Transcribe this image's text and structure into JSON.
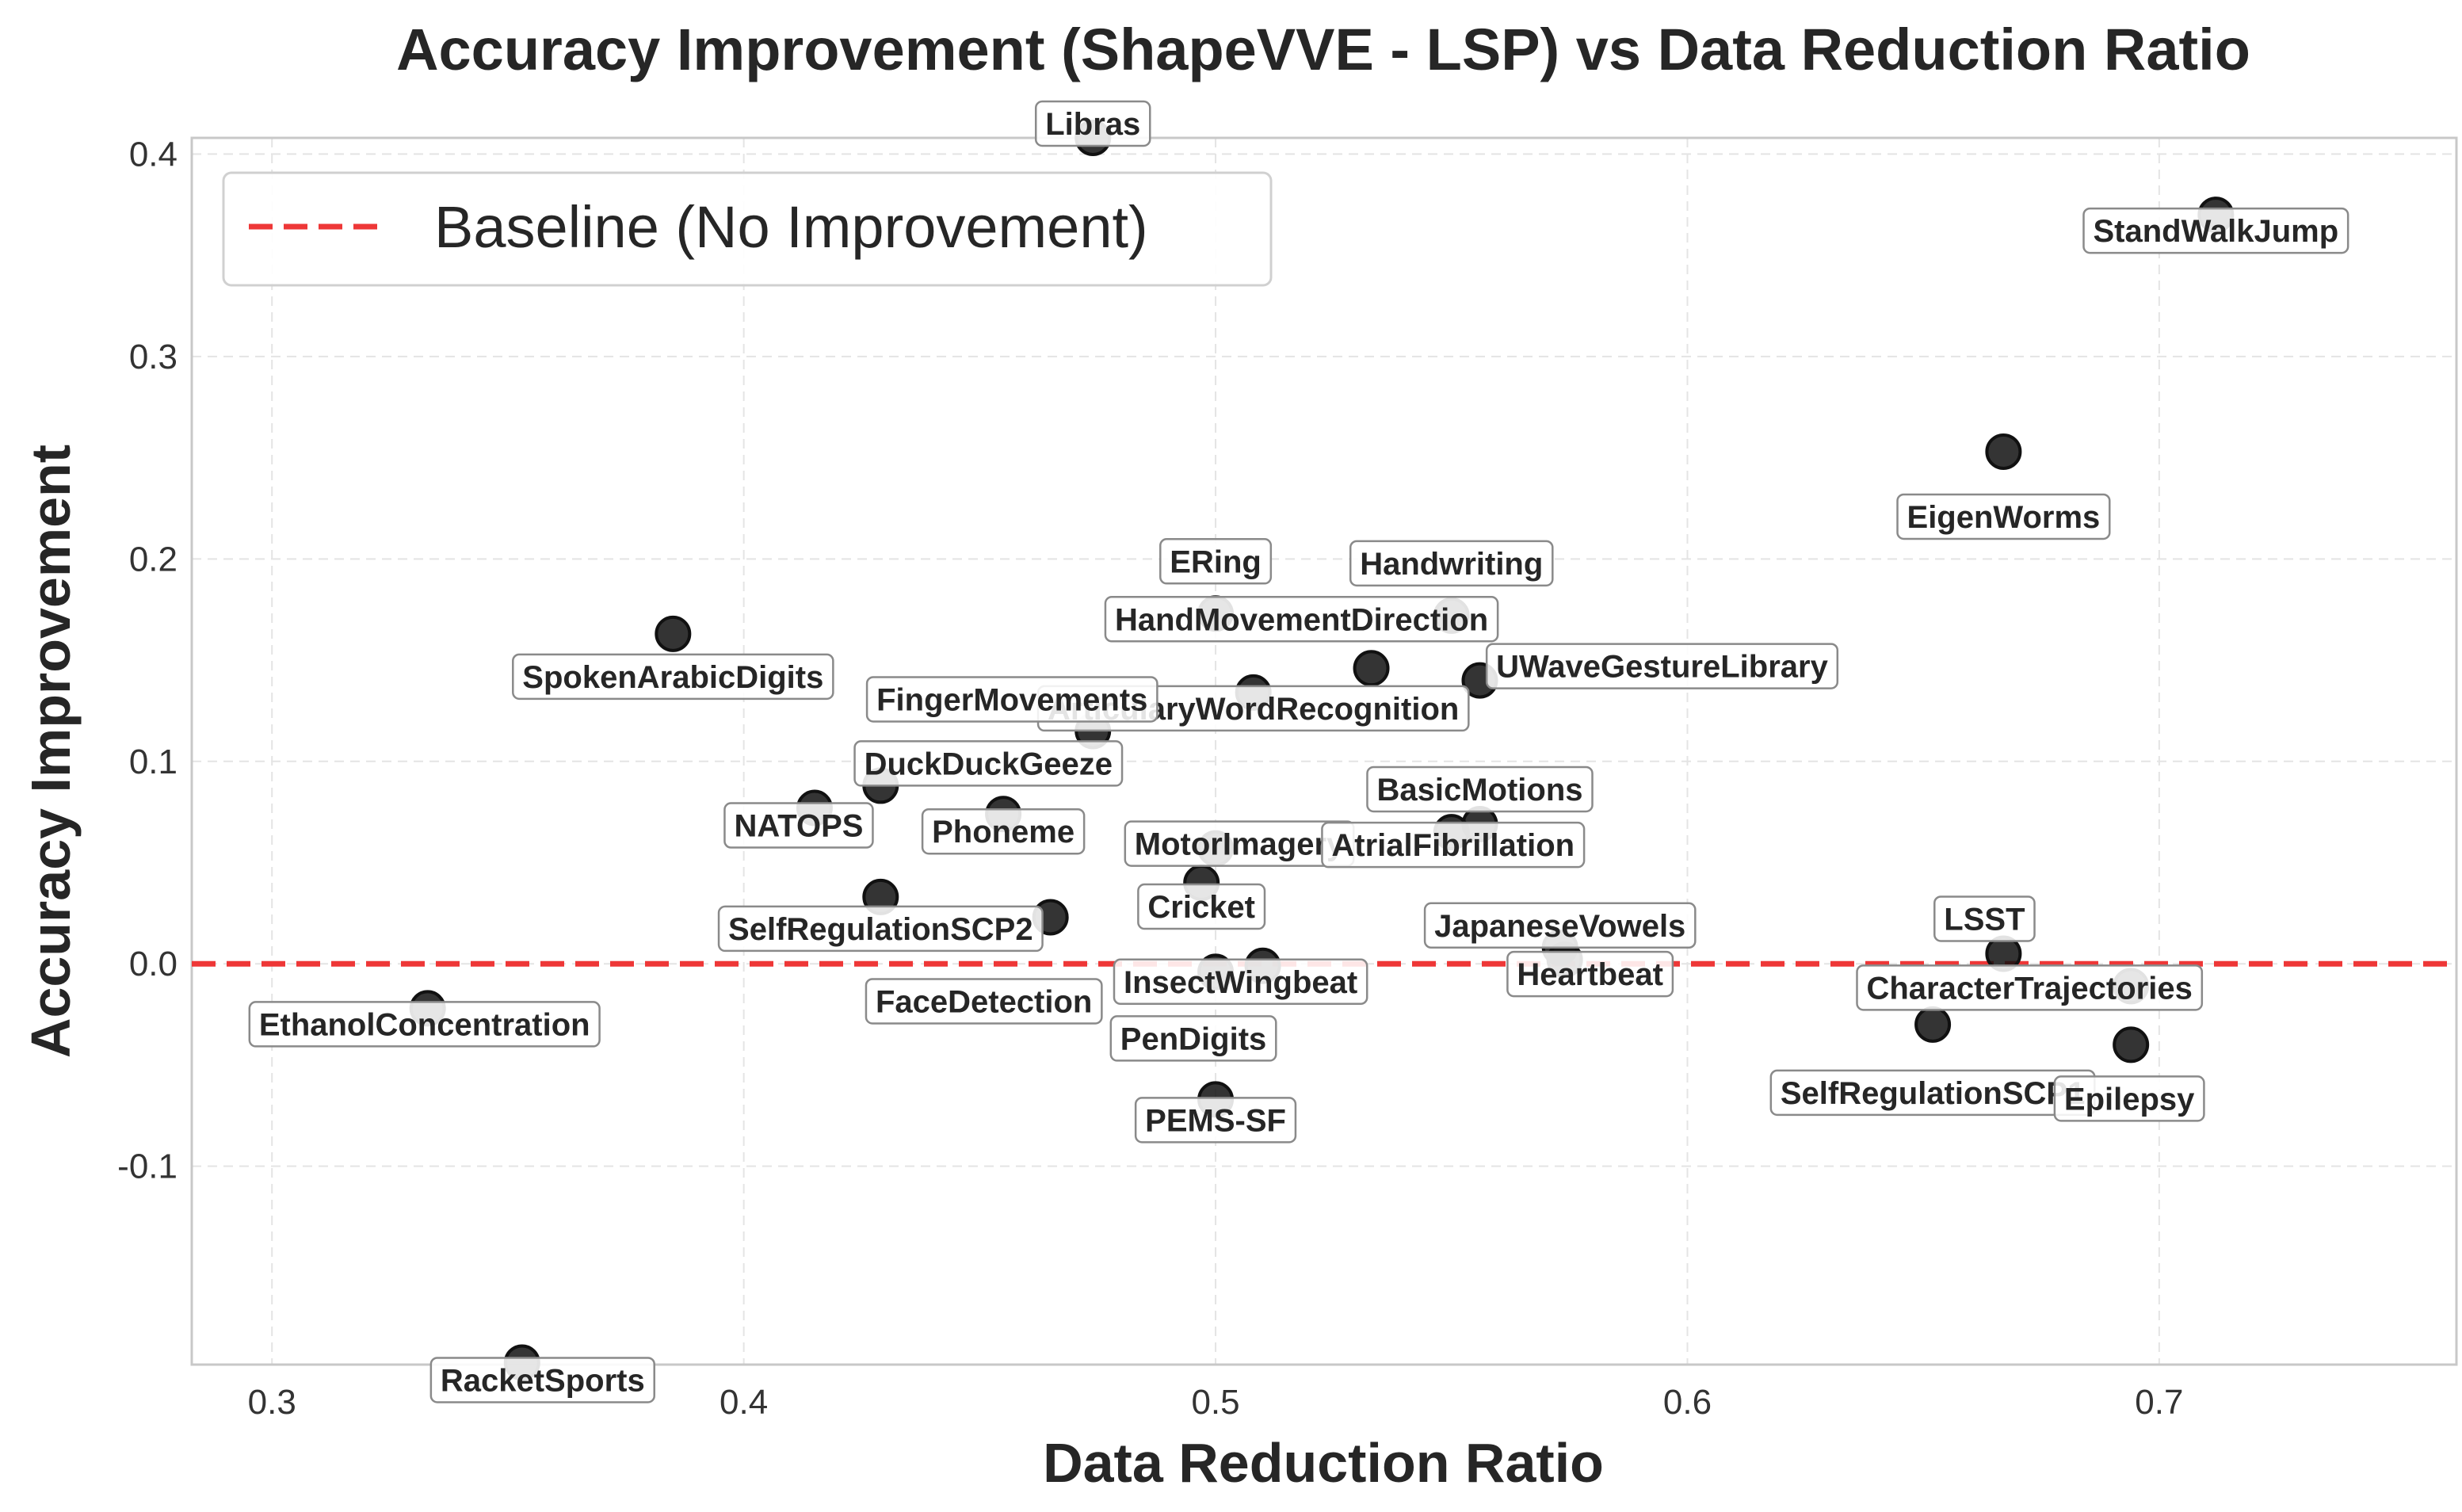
{
  "chart_data": {
    "type": "scatter",
    "title": "Accuracy Improvement (ShapeVVE - LSP) vs Data Reduction Ratio",
    "xlabel": "Data Reduction Ratio",
    "ylabel": "Accuracy Improvement",
    "xlim": [
      0.283,
      0.763
    ],
    "ylim": [
      -0.198,
      0.408
    ],
    "xticks": [
      0.3,
      0.4,
      0.5,
      0.6,
      0.7
    ],
    "xtick_labels": [
      "0.3",
      "0.4",
      "0.5",
      "0.6",
      "0.7"
    ],
    "yticks": [
      -0.1,
      0.0,
      0.1,
      0.2,
      0.3,
      0.4
    ],
    "ytick_labels": [
      "-0.1",
      "0.0",
      "0.1",
      "0.2",
      "0.3",
      "0.4"
    ],
    "grid": true,
    "legend": {
      "position": "top-left",
      "entries": [
        "Baseline (No Improvement)"
      ]
    },
    "baseline": {
      "y": 0.0,
      "color": "#ee3737",
      "style": "dashed"
    },
    "point_color": "#111111",
    "points": [
      {
        "label": "Libras",
        "x": 0.474,
        "y": 0.408
      },
      {
        "label": "StandWalkJump",
        "x": 0.712,
        "y": 0.37
      },
      {
        "label": "EigenWorms",
        "x": 0.667,
        "y": 0.253
      },
      {
        "label": "ERing",
        "x": 0.5,
        "y": 0.173
      },
      {
        "label": "Handwriting",
        "x": 0.55,
        "y": 0.172
      },
      {
        "label": "SpokenArabicDigits",
        "x": 0.385,
        "y": 0.163
      },
      {
        "label": "HandMovementDirection",
        "x": 0.533,
        "y": 0.146
      },
      {
        "label": "UWaveGestureLibrary",
        "x": 0.556,
        "y": 0.14
      },
      {
        "label": "ArticularyWordRecognition",
        "x": 0.508,
        "y": 0.134
      },
      {
        "label": "FingerMovements",
        "x": 0.474,
        "y": 0.115
      },
      {
        "label": "DuckDuckGeeze",
        "x": 0.429,
        "y": 0.088
      },
      {
        "label": "NATOPS",
        "x": 0.415,
        "y": 0.077
      },
      {
        "label": "Phoneme",
        "x": 0.455,
        "y": 0.074
      },
      {
        "label": "BasicMotions",
        "x": 0.556,
        "y": 0.069
      },
      {
        "label": "MotorImagery",
        "x": 0.5,
        "y": 0.057
      },
      {
        "label": "AtrialFibrillation",
        "x": 0.55,
        "y": 0.065
      },
      {
        "label": "Cricket",
        "x": 0.497,
        "y": 0.04
      },
      {
        "label": "SelfRegulationSCP2",
        "x": 0.429,
        "y": 0.033
      },
      {
        "label": "FaceDetection",
        "x": 0.465,
        "y": 0.023
      },
      {
        "label": "JapaneseVowels",
        "x": 0.573,
        "y": 0.008
      },
      {
        "label": "Heartbeat",
        "x": 0.574,
        "y": 0.002
      },
      {
        "label": "InsectWingbeat",
        "x": 0.51,
        "y": -0.001
      },
      {
        "label": "PenDigits",
        "x": 0.5,
        "y": -0.004
      },
      {
        "label": "LSST",
        "x": 0.667,
        "y": 0.005
      },
      {
        "label": "CharacterTrajectories",
        "x": 0.694,
        "y": -0.011
      },
      {
        "label": "EthanolConcentration",
        "x": 0.333,
        "y": -0.022
      },
      {
        "label": "SelfRegulationSCP1",
        "x": 0.652,
        "y": -0.03
      },
      {
        "label": "Epilepsy",
        "x": 0.694,
        "y": -0.04
      },
      {
        "label": "PEMS-SF",
        "x": 0.5,
        "y": -0.067
      },
      {
        "label": "RacketSports",
        "x": 0.353,
        "y": -0.197
      }
    ]
  }
}
